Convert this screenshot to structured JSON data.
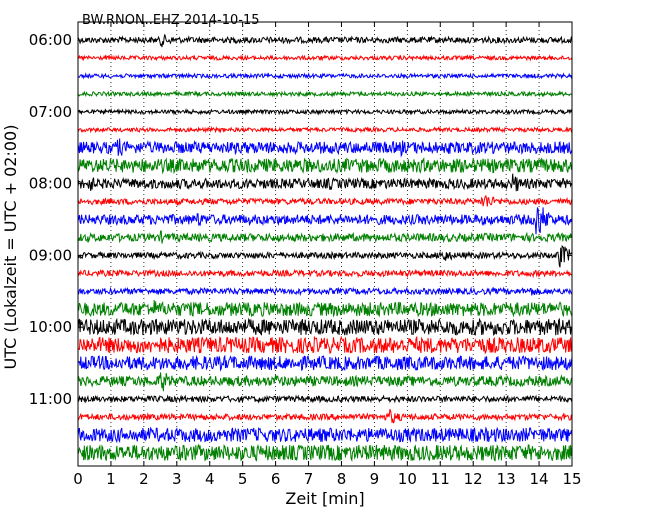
{
  "chart_data": {
    "type": "line",
    "title": "BW.RNON..EHZ 2014-10-15",
    "xlabel": "Zeit  [min]",
    "ylabel": "UTC (Lokalzeit = UTC + 02:00)",
    "xlim": [
      0,
      15
    ],
    "x_ticks": [
      "0",
      "1",
      "2",
      "3",
      "4",
      "5",
      "6",
      "7",
      "8",
      "9",
      "10",
      "11",
      "12",
      "13",
      "14",
      "15"
    ],
    "y_tick_labels": [
      "06:00",
      "07:00",
      "08:00",
      "09:00",
      "10:00",
      "11:00"
    ],
    "traces_per_hour": 4,
    "trace_minutes": 15,
    "grid": "vertical dotted lines at each minute",
    "color_cycle": [
      "#000000",
      "#ff0000",
      "#0000ff",
      "#008000"
    ],
    "traces": [
      {
        "time": "06:00",
        "noise": 3,
        "events": [
          {
            "t": 2.5,
            "amp": 8
          }
        ]
      },
      {
        "time": "06:15",
        "noise": 2,
        "events": []
      },
      {
        "time": "06:30",
        "noise": 2,
        "events": []
      },
      {
        "time": "06:45",
        "noise": 2,
        "events": []
      },
      {
        "time": "07:00",
        "noise": 2,
        "events": []
      },
      {
        "time": "07:15",
        "noise": 2,
        "events": []
      },
      {
        "time": "07:30",
        "noise": 6,
        "events": [
          {
            "t": 1.2,
            "amp": 11
          },
          {
            "t": 9.8,
            "amp": 9
          }
        ]
      },
      {
        "time": "07:45",
        "noise": 7,
        "events": [
          {
            "t": 11.9,
            "amp": 9
          }
        ]
      },
      {
        "time": "08:00",
        "noise": 5,
        "events": [
          {
            "t": 0.3,
            "amp": 10
          },
          {
            "t": 7.6,
            "amp": 8
          },
          {
            "t": 13.2,
            "amp": 11
          }
        ]
      },
      {
        "time": "08:15",
        "noise": 3,
        "events": [
          {
            "t": 12.3,
            "amp": 10
          }
        ]
      },
      {
        "time": "08:30",
        "noise": 5,
        "events": [
          {
            "t": 3.6,
            "amp": 9
          },
          {
            "t": 13.9,
            "amp": 22
          }
        ]
      },
      {
        "time": "08:45",
        "noise": 4,
        "events": [
          {
            "t": 2.5,
            "amp": 7
          }
        ]
      },
      {
        "time": "09:00",
        "noise": 3,
        "events": [
          {
            "t": 11.0,
            "amp": 9
          },
          {
            "t": 14.6,
            "amp": 14
          }
        ]
      },
      {
        "time": "09:15",
        "noise": 3,
        "events": []
      },
      {
        "time": "09:30",
        "noise": 3,
        "events": [
          {
            "t": 13.7,
            "amp": 6
          }
        ]
      },
      {
        "time": "09:45",
        "noise": 7,
        "events": [
          {
            "t": 2.3,
            "amp": 10
          }
        ]
      },
      {
        "time": "10:00",
        "noise": 8,
        "events": [
          {
            "t": 0.4,
            "amp": 10
          }
        ]
      },
      {
        "time": "10:15",
        "noise": 8,
        "events": []
      },
      {
        "time": "10:30",
        "noise": 7,
        "events": [
          {
            "t": 0.3,
            "amp": 9
          }
        ]
      },
      {
        "time": "10:45",
        "noise": 5,
        "events": [
          {
            "t": 2.5,
            "amp": 13
          },
          {
            "t": 6.0,
            "amp": 7
          }
        ]
      },
      {
        "time": "11:00",
        "noise": 3,
        "events": []
      },
      {
        "time": "11:15",
        "noise": 3,
        "events": [
          {
            "t": 9.4,
            "amp": 10
          }
        ]
      },
      {
        "time": "11:30",
        "noise": 7,
        "events": []
      },
      {
        "time": "11:45",
        "noise": 8,
        "events": []
      }
    ]
  }
}
